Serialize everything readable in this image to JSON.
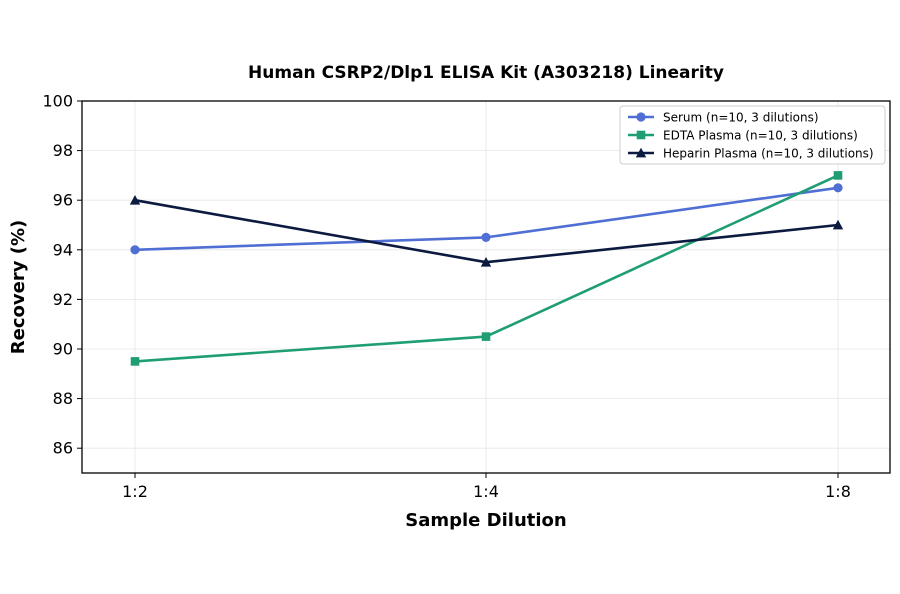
{
  "chart_data": {
    "type": "line",
    "title": "Human CSRP2/Dlp1 ELISA Kit (A303218) Linearity",
    "xlabel": "Sample Dilution",
    "ylabel": "Recovery (%)",
    "categories": [
      "1:2",
      "1:4",
      "1:8"
    ],
    "ylim": [
      85,
      100
    ],
    "yticks": [
      86,
      88,
      90,
      92,
      94,
      96,
      98,
      100
    ],
    "grid": true,
    "legend_position": "top-right",
    "series": [
      {
        "name": "Serum (n=10, 3 dilutions)",
        "values": [
          94.0,
          94.5,
          96.5
        ],
        "color": "#4f6fd4",
        "marker": "circle"
      },
      {
        "name": "EDTA Plasma (n=10, 3 dilutions)",
        "values": [
          89.5,
          90.5,
          97.0
        ],
        "color": "#1f9e74",
        "marker": "square"
      },
      {
        "name": "Heparin Plasma (n=10, 3 dilutions)",
        "values": [
          96.0,
          93.5,
          95.0
        ],
        "color": "#0c1a40",
        "marker": "triangle"
      }
    ]
  }
}
